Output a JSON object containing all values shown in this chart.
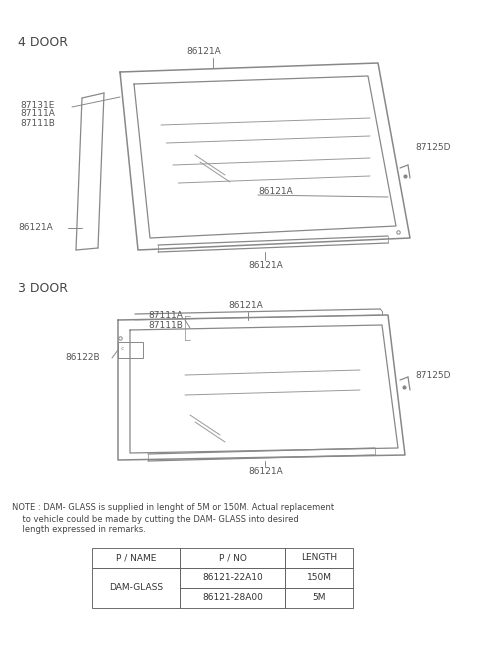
{
  "bg_color": "#ffffff",
  "lc": "#888888",
  "tc": "#555555",
  "title_4door": "4 DOOR",
  "title_3door": "3 DOOR",
  "note_line1": "NOTE : DAM- GLASS is supplied in lenght of 5M or 150M. Actual replacement",
  "note_line2": "    to vehicle could be made by cutting the DAM- GLASS into desired",
  "note_line3": "    length expressed in remarks.",
  "table_headers": [
    "P / NAME",
    "P / NO",
    "LENGTH"
  ],
  "table_row1_pno": "86121-22A10",
  "table_row1_len": "150M",
  "table_row2_pno": "86121-28A00",
  "table_row2_len": "5M",
  "table_pname": "DAM-GLASS"
}
